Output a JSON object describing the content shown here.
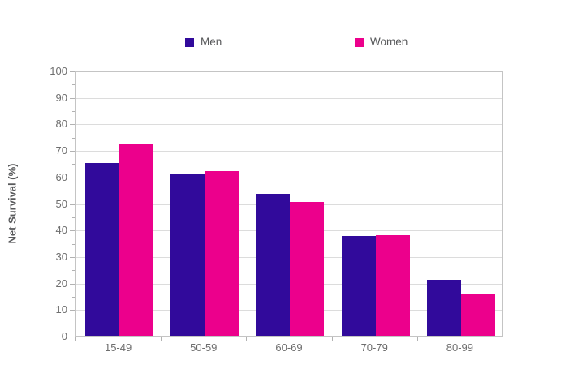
{
  "chart_data": {
    "type": "bar",
    "title": "",
    "categories": [
      "15-49",
      "50-59",
      "60-69",
      "70-79",
      "80-99"
    ],
    "series": [
      {
        "name": "Men",
        "color": "#310a9b",
        "values": [
          65,
          61,
          53.5,
          37.5,
          21
        ]
      },
      {
        "name": "Women",
        "color": "#ec008c",
        "values": [
          72.5,
          62,
          50.5,
          38,
          16
        ]
      }
    ],
    "xlabel": "",
    "ylabel": "Net Survival (%)",
    "ylim": [
      0,
      100
    ],
    "y_tick_step": 10,
    "y_minor_tick_step": 5,
    "y_tick_labels": [
      "0",
      "10",
      "20",
      "30",
      "40",
      "50",
      "60",
      "70",
      "80",
      "90",
      "100"
    ],
    "grid": true,
    "legend_position": "top"
  },
  "colors": {
    "men": "#310a9b",
    "women": "#ec008c",
    "grid": "#dcdcdc",
    "plot_border": "#c4c4c4",
    "tick_mark": "#b2b2b2",
    "tick_text": "#6e6e6e",
    "axis_title_text": "#58595b",
    "legend_text": "#58595b",
    "background": "#ffffff"
  }
}
